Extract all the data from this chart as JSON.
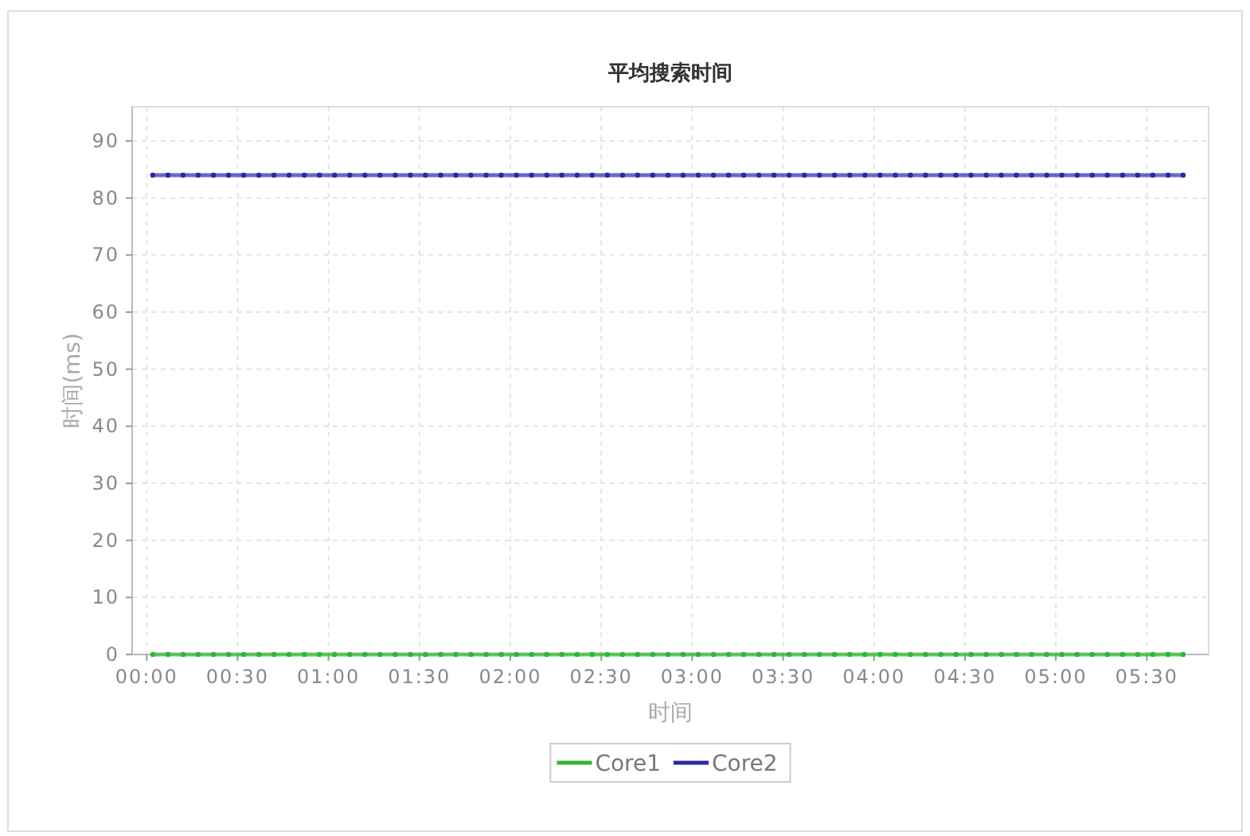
{
  "chart_data": {
    "type": "line",
    "title": "平均搜索时间",
    "xlabel": "时间",
    "ylabel": "时间(ms)",
    "x": [
      0.033,
      0.117,
      0.2,
      0.283,
      0.367,
      0.45,
      0.533,
      0.617,
      0.7,
      0.783,
      0.867,
      0.95,
      1.033,
      1.117,
      1.2,
      1.283,
      1.367,
      1.45,
      1.533,
      1.617,
      1.7,
      1.783,
      1.867,
      1.95,
      2.033,
      2.117,
      2.2,
      2.283,
      2.367,
      2.45,
      2.533,
      2.617,
      2.7,
      2.783,
      2.867,
      2.95,
      3.033,
      3.117,
      3.2,
      3.283,
      3.367,
      3.45,
      3.533,
      3.617,
      3.7,
      3.783,
      3.867,
      3.95,
      4.033,
      4.117,
      4.2,
      4.283,
      4.367,
      4.45,
      4.533,
      4.617,
      4.7,
      4.783,
      4.867,
      4.95,
      5.033,
      5.117,
      5.2,
      5.283,
      5.367,
      5.45,
      5.533,
      5.617,
      5.7
    ],
    "xlim": [
      -0.08,
      5.84
    ],
    "xticks": [
      {
        "value": 0,
        "label": "00:00"
      },
      {
        "value": 0.5,
        "label": "00:30"
      },
      {
        "value": 1,
        "label": "01:00"
      },
      {
        "value": 1.5,
        "label": "01:30"
      },
      {
        "value": 2,
        "label": "02:00"
      },
      {
        "value": 2.5,
        "label": "02:30"
      },
      {
        "value": 3,
        "label": "03:00"
      },
      {
        "value": 3.5,
        "label": "03:30"
      },
      {
        "value": 4,
        "label": "04:00"
      },
      {
        "value": 4.5,
        "label": "04:30"
      },
      {
        "value": 5,
        "label": "05:00"
      },
      {
        "value": 5.5,
        "label": "05:30"
      }
    ],
    "ylim": [
      0,
      96
    ],
    "yticks": [
      0,
      10,
      20,
      30,
      40,
      50,
      60,
      70,
      80,
      90
    ],
    "series": [
      {
        "name": "Core1",
        "color": "#33b533",
        "values": [
          0,
          0,
          0,
          0,
          0,
          0,
          0,
          0,
          0,
          0,
          0,
          0,
          0,
          0,
          0,
          0,
          0,
          0,
          0,
          0,
          0,
          0,
          0,
          0,
          0,
          0,
          0,
          0,
          0,
          0,
          0,
          0,
          0,
          0,
          0,
          0,
          0,
          0,
          0,
          0,
          0,
          0,
          0,
          0,
          0,
          0,
          0,
          0,
          0,
          0,
          0,
          0,
          0,
          0,
          0,
          0,
          0,
          0,
          0,
          0,
          0,
          0,
          0,
          0,
          0,
          0,
          0,
          0,
          0
        ]
      },
      {
        "name": "Core2",
        "color": "#2a2aa8",
        "values": [
          84,
          84,
          84,
          84,
          84,
          84,
          84,
          84,
          84,
          84,
          84,
          84,
          84,
          84,
          84,
          84,
          84,
          84,
          84,
          84,
          84,
          84,
          84,
          84,
          84,
          84,
          84,
          84,
          84,
          84,
          84,
          84,
          84,
          84,
          84,
          84,
          84,
          84,
          84,
          84,
          84,
          84,
          84,
          84,
          84,
          84,
          84,
          84,
          84,
          84,
          84,
          84,
          84,
          84,
          84,
          84,
          84,
          84,
          84,
          84,
          84,
          84,
          84,
          84,
          84,
          84,
          84,
          84,
          84
        ]
      }
    ],
    "grid": true,
    "legend": "bottom",
    "marker": "circle",
    "line_style": "solid"
  }
}
